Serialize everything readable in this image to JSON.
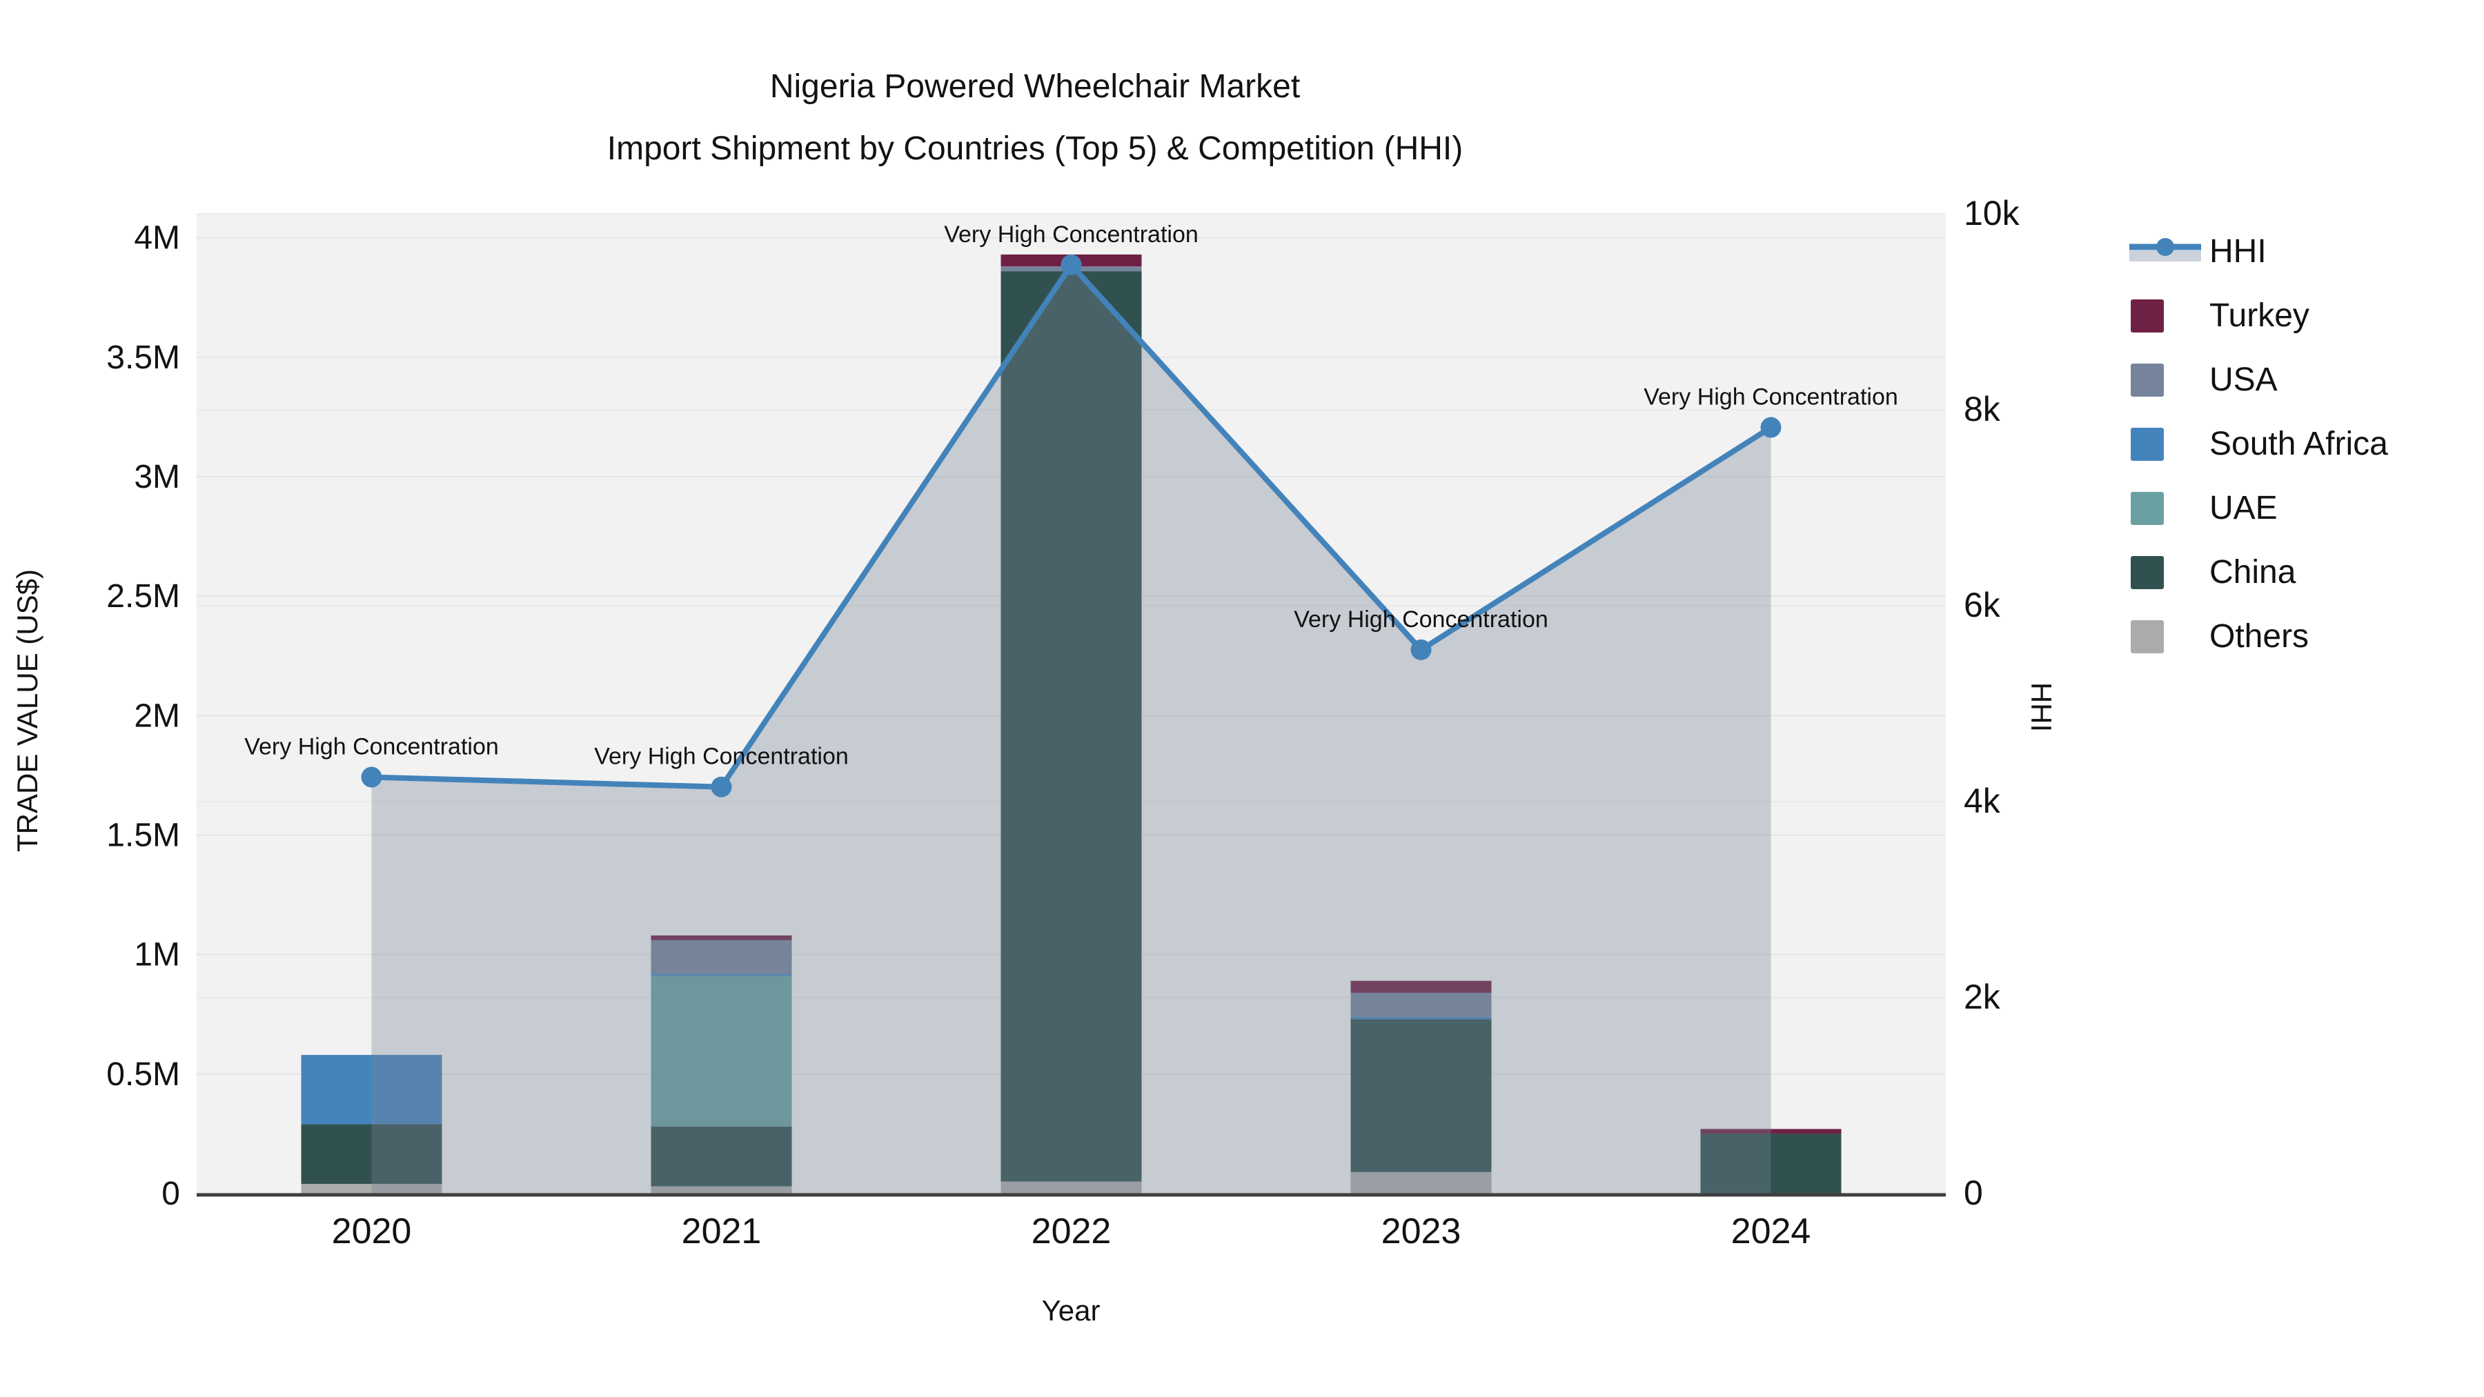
{
  "title": {
    "line1": "Nigeria Powered Wheelchair Market",
    "line2": "Import Shipment by Countries (Top 5) & Competition (HHI)"
  },
  "axes": {
    "x": {
      "title": "Year",
      "categories": [
        "2020",
        "2021",
        "2022",
        "2023",
        "2024"
      ]
    },
    "y_left": {
      "title": "TRADE VALUE (US$)",
      "ticks": [
        "0",
        "0.5M",
        "1M",
        "1.5M",
        "2M",
        "2.5M",
        "3M",
        "3.5M",
        "4M"
      ],
      "tick_values": [
        0,
        500000,
        1000000,
        1500000,
        2000000,
        2500000,
        3000000,
        3500000,
        4000000
      ],
      "max": 4100000
    },
    "y_right": {
      "title": "HHI",
      "ticks": [
        "0",
        "2k",
        "4k",
        "6k",
        "8k",
        "10k"
      ],
      "tick_values": [
        0,
        2000,
        4000,
        6000,
        8000,
        10000
      ],
      "max": 10000
    }
  },
  "chart_data": {
    "type": "bar+line",
    "categories": [
      "2020",
      "2021",
      "2022",
      "2023",
      "2024"
    ],
    "bar_series": [
      {
        "name": "Others",
        "color": "#aaacab",
        "values": [
          40000,
          30000,
          50000,
          90000,
          0
        ]
      },
      {
        "name": "China",
        "color": "#315150",
        "values": [
          250000,
          250000,
          3810000,
          640000,
          250000
        ]
      },
      {
        "name": "UAE",
        "color": "#69a1a2",
        "values": [
          0,
          630000,
          0,
          0,
          0
        ]
      },
      {
        "name": "South Africa",
        "color": "#4484bc",
        "values": [
          290000,
          10000,
          0,
          10000,
          0
        ]
      },
      {
        "name": "USA",
        "color": "#75849b",
        "values": [
          0,
          140000,
          20000,
          100000,
          0
        ]
      },
      {
        "name": "Turkey",
        "color": "#6f2145",
        "values": [
          0,
          20000,
          50000,
          50000,
          20000
        ]
      }
    ],
    "line_series": {
      "name": "HHI",
      "axis": "right",
      "color": "#4383ba",
      "area_color": "rgba(119,131,149,0.35)",
      "values": [
        4250,
        4150,
        9480,
        5550,
        7820
      ]
    },
    "annotations": [
      "Very High Concentration",
      "Very High Concentration",
      "Very High Concentration",
      "Very High Concentration",
      "Very High Concentration"
    ],
    "ylim_left": [
      0,
      4100000
    ],
    "ylim_right": [
      0,
      10000
    ],
    "grid": true,
    "legend_position": "right"
  },
  "legend": {
    "items": [
      {
        "label": "HHI",
        "type": "line",
        "color": "#4383ba",
        "band_color": "#ccd2db"
      },
      {
        "label": "Turkey",
        "type": "swatch",
        "color": "#6f2145"
      },
      {
        "label": "USA",
        "type": "swatch",
        "color": "#75849b"
      },
      {
        "label": "South Africa",
        "type": "swatch",
        "color": "#4484bc"
      },
      {
        "label": "UAE",
        "type": "swatch",
        "color": "#69a1a2"
      },
      {
        "label": "China",
        "type": "swatch",
        "color": "#315150"
      },
      {
        "label": "Others",
        "type": "swatch",
        "color": "#aaacab"
      }
    ]
  },
  "colors": {
    "plot_bg": "#f2f2f3",
    "grid_left": "#e4e5e7",
    "grid_right": "#e9eaeb",
    "axis_line": "#3f3f3f",
    "text": "#121212",
    "hhi_line": "#4383ba",
    "hhi_area": "rgba(119,131,149,0.35)"
  }
}
